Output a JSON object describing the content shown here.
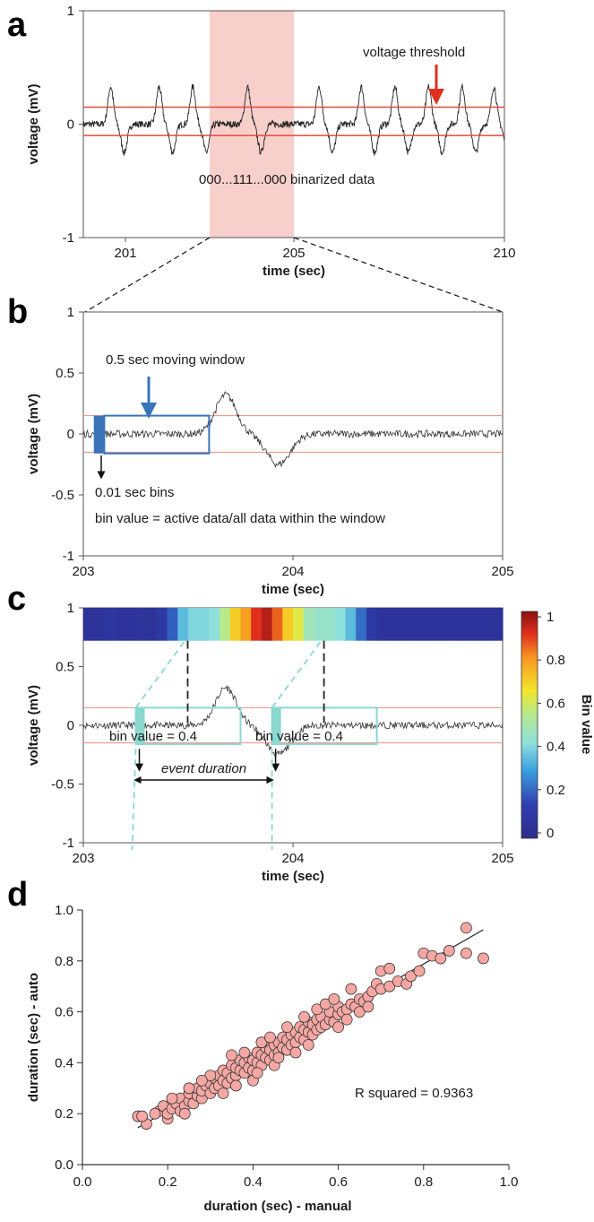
{
  "panels": {
    "a": "a",
    "b": "b",
    "c": "c",
    "d": "d"
  },
  "chart_data": [
    {
      "id": "a",
      "type": "line",
      "xlabel": "time (sec)",
      "ylabel": "voltage (mV)",
      "xlim": [
        200,
        210
      ],
      "ylim": [
        -1,
        1
      ],
      "xticks": [
        "201",
        "205",
        "210"
      ],
      "xtick_values": [
        201,
        205,
        210
      ],
      "yticks": [
        "1",
        "0",
        "-1"
      ],
      "ytick_values": [
        1,
        0,
        -1
      ],
      "thresholds": [
        0.15,
        -0.1
      ],
      "threshold_color": "#e34a3a",
      "highlight_x": [
        203,
        205
      ],
      "highlight_color": "#f7d0cc",
      "annotations": {
        "threshold_label": "voltage threshold",
        "binarized_label": "000...111...000   binarized data"
      },
      "event_times": [
        200.65,
        201.8,
        202.6,
        203.9,
        205.6,
        206.6,
        207.4,
        208.2,
        209.0,
        209.75
      ]
    },
    {
      "id": "b",
      "type": "line",
      "xlabel": "time (sec)",
      "ylabel": "voltage (mV)",
      "xlim": [
        203,
        205
      ],
      "ylim": [
        -1,
        1
      ],
      "xticks": [
        "203",
        "204",
        "205"
      ],
      "xtick_values": [
        203,
        204,
        205
      ],
      "yticks": [
        "1",
        "0.5",
        "0",
        "-0.5",
        "-1"
      ],
      "ytick_values": [
        1,
        0.5,
        0,
        -0.5,
        -1
      ],
      "thresholds": [
        0.15,
        -0.15
      ],
      "window_x": [
        203.1,
        203.6
      ],
      "bin_x": [
        203.05,
        203.1
      ],
      "window_color": "#3a74b8",
      "annotations": {
        "window_label": "0.5 sec moving window",
        "bins_label": "0.01 sec bins",
        "formula_label": "bin value = active data/all data within the window"
      }
    },
    {
      "id": "c",
      "type": "heatmap",
      "xlabel": "time (sec)",
      "ylabel": "voltage (mV)",
      "xlim": [
        203,
        205
      ],
      "ylim": [
        -1,
        1
      ],
      "xticks": [
        "203",
        "204",
        "205"
      ],
      "xtick_values": [
        203,
        204,
        205
      ],
      "yticks": [
        "1",
        "0.5",
        "0",
        "-0.5",
        "-1"
      ],
      "ytick_values": [
        1,
        0.5,
        0,
        -0.5,
        -1
      ],
      "thresholds": [
        0.15,
        -0.15
      ],
      "colorbar_label": "Bin value",
      "colorbar_ticks": [
        "1",
        "0.8",
        "0.6",
        "0.4",
        "0.2",
        "0"
      ],
      "colorbar_values": [
        1,
        0.8,
        0.6,
        0.4,
        0.2,
        0
      ],
      "heat_row": [
        0.05,
        0.05,
        0.08,
        0.05,
        0.05,
        0.06,
        0.05,
        0.1,
        0.2,
        0.35,
        0.4,
        0.4,
        0.42,
        0.55,
        0.7,
        0.78,
        0.9,
        0.95,
        0.85,
        0.7,
        0.62,
        0.48,
        0.45,
        0.45,
        0.42,
        0.35,
        0.22,
        0.1,
        0.05,
        0.05,
        0.05,
        0.05,
        0.05,
        0.05,
        0.05,
        0.05,
        0.05,
        0.05,
        0.05,
        0.05
      ],
      "window1_x": [
        203.25,
        203.75
      ],
      "window2_x": [
        203.9,
        204.4
      ],
      "window_color": "#8ad8d0",
      "annotations": {
        "bin1_label": "bin value = 0.4",
        "bin2_label": "bin value = 0.4",
        "duration_label": "event duration"
      },
      "event_start": 203.25,
      "event_end": 203.9
    },
    {
      "id": "d",
      "type": "scatter",
      "xlabel": "duration (sec) - manual",
      "ylabel": "duration (sec) - auto",
      "xlim": [
        0,
        1
      ],
      "ylim": [
        0,
        1
      ],
      "xticks": [
        "0.0",
        "0.2",
        "0.4",
        "0.6",
        "0.8",
        "1.0"
      ],
      "xtick_values": [
        0,
        0.2,
        0.4,
        0.6,
        0.8,
        1.0
      ],
      "yticks": [
        "0.0",
        "0.2",
        "0.4",
        "0.6",
        "0.8",
        "1.0"
      ],
      "ytick_values": [
        0,
        0.2,
        0.4,
        0.6,
        0.8,
        1.0
      ],
      "point_color": "#f4a7a3",
      "fit_line": {
        "slope": 0.96,
        "intercept": 0.02,
        "x_range": [
          0.13,
          0.94
        ]
      },
      "annotation": "R squared = 0.9363",
      "points": [
        [
          0.13,
          0.19
        ],
        [
          0.15,
          0.16
        ],
        [
          0.14,
          0.19
        ],
        [
          0.18,
          0.21
        ],
        [
          0.19,
          0.23
        ],
        [
          0.2,
          0.18
        ],
        [
          0.2,
          0.2
        ],
        [
          0.21,
          0.22
        ],
        [
          0.22,
          0.24
        ],
        [
          0.23,
          0.21
        ],
        [
          0.23,
          0.26
        ],
        [
          0.24,
          0.23
        ],
        [
          0.25,
          0.25
        ],
        [
          0.25,
          0.28
        ],
        [
          0.26,
          0.24
        ],
        [
          0.27,
          0.27
        ],
        [
          0.27,
          0.3
        ],
        [
          0.28,
          0.26
        ],
        [
          0.28,
          0.29
        ],
        [
          0.29,
          0.31
        ],
        [
          0.3,
          0.28
        ],
        [
          0.3,
          0.32
        ],
        [
          0.31,
          0.3
        ],
        [
          0.31,
          0.34
        ],
        [
          0.32,
          0.31
        ],
        [
          0.32,
          0.35
        ],
        [
          0.33,
          0.33
        ],
        [
          0.33,
          0.37
        ],
        [
          0.34,
          0.32
        ],
        [
          0.34,
          0.36
        ],
        [
          0.35,
          0.34
        ],
        [
          0.35,
          0.39
        ],
        [
          0.36,
          0.35
        ],
        [
          0.36,
          0.38
        ],
        [
          0.37,
          0.37
        ],
        [
          0.37,
          0.41
        ],
        [
          0.38,
          0.36
        ],
        [
          0.38,
          0.4
        ],
        [
          0.39,
          0.38
        ],
        [
          0.39,
          0.42
        ],
        [
          0.4,
          0.37
        ],
        [
          0.4,
          0.41
        ],
        [
          0.41,
          0.4
        ],
        [
          0.41,
          0.44
        ],
        [
          0.42,
          0.39
        ],
        [
          0.42,
          0.43
        ],
        [
          0.43,
          0.42
        ],
        [
          0.43,
          0.46
        ],
        [
          0.44,
          0.41
        ],
        [
          0.44,
          0.45
        ],
        [
          0.45,
          0.43
        ],
        [
          0.45,
          0.47
        ],
        [
          0.46,
          0.44
        ],
        [
          0.46,
          0.48
        ],
        [
          0.47,
          0.46
        ],
        [
          0.47,
          0.5
        ],
        [
          0.48,
          0.45
        ],
        [
          0.48,
          0.49
        ],
        [
          0.49,
          0.47
        ],
        [
          0.49,
          0.51
        ],
        [
          0.5,
          0.48
        ],
        [
          0.5,
          0.52
        ],
        [
          0.51,
          0.5
        ],
        [
          0.51,
          0.54
        ],
        [
          0.52,
          0.49
        ],
        [
          0.52,
          0.53
        ],
        [
          0.53,
          0.52
        ],
        [
          0.53,
          0.56
        ],
        [
          0.54,
          0.51
        ],
        [
          0.54,
          0.55
        ],
        [
          0.55,
          0.53
        ],
        [
          0.55,
          0.57
        ],
        [
          0.56,
          0.54
        ],
        [
          0.56,
          0.58
        ],
        [
          0.57,
          0.55
        ],
        [
          0.58,
          0.57
        ],
        [
          0.58,
          0.6
        ],
        [
          0.59,
          0.56
        ],
        [
          0.6,
          0.59
        ],
        [
          0.6,
          0.62
        ],
        [
          0.61,
          0.6
        ],
        [
          0.62,
          0.61
        ],
        [
          0.63,
          0.63
        ],
        [
          0.64,
          0.62
        ],
        [
          0.65,
          0.65
        ],
        [
          0.66,
          0.64
        ],
        [
          0.67,
          0.66
        ],
        [
          0.68,
          0.68
        ],
        [
          0.69,
          0.71
        ],
        [
          0.7,
          0.69
        ],
        [
          0.72,
          0.7
        ],
        [
          0.74,
          0.72
        ],
        [
          0.76,
          0.71
        ],
        [
          0.77,
          0.74
        ],
        [
          0.8,
          0.83
        ],
        [
          0.82,
          0.82
        ],
        [
          0.86,
          0.84
        ],
        [
          0.9,
          0.93
        ],
        [
          0.9,
          0.83
        ],
        [
          0.94,
          0.81
        ],
        [
          0.3,
          0.35
        ],
        [
          0.25,
          0.3
        ],
        [
          0.35,
          0.43
        ],
        [
          0.4,
          0.33
        ],
        [
          0.45,
          0.39
        ],
        [
          0.5,
          0.44
        ],
        [
          0.55,
          0.61
        ],
        [
          0.6,
          0.54
        ],
        [
          0.65,
          0.6
        ],
        [
          0.7,
          0.76
        ],
        [
          0.42,
          0.48
        ],
        [
          0.38,
          0.44
        ],
        [
          0.33,
          0.28
        ],
        [
          0.28,
          0.33
        ],
        [
          0.46,
          0.42
        ],
        [
          0.52,
          0.58
        ],
        [
          0.57,
          0.63
        ],
        [
          0.62,
          0.57
        ],
        [
          0.67,
          0.62
        ],
        [
          0.72,
          0.77
        ],
        [
          0.79,
          0.76
        ],
        [
          0.84,
          0.81
        ],
        [
          0.17,
          0.2
        ],
        [
          0.21,
          0.26
        ],
        [
          0.24,
          0.2
        ],
        [
          0.36,
          0.31
        ],
        [
          0.41,
          0.36
        ],
        [
          0.44,
          0.5
        ],
        [
          0.48,
          0.54
        ],
        [
          0.53,
          0.47
        ],
        [
          0.59,
          0.65
        ],
        [
          0.63,
          0.69
        ]
      ]
    }
  ]
}
